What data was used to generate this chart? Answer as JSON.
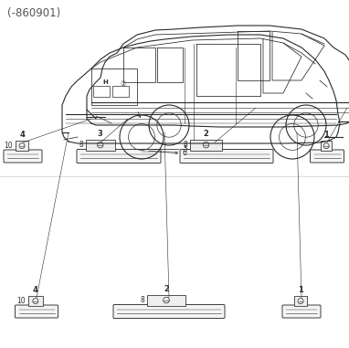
{
  "title": "(-860901)",
  "bg_color": "#ffffff",
  "line_color": "#2a2a2a",
  "fig_width": 3.82,
  "fig_height": 3.81,
  "dpi": 100,
  "title_fontsize": 8.5,
  "title_color": "#555555",
  "label_fontsize": 6,
  "sub_fontsize": 5.5
}
